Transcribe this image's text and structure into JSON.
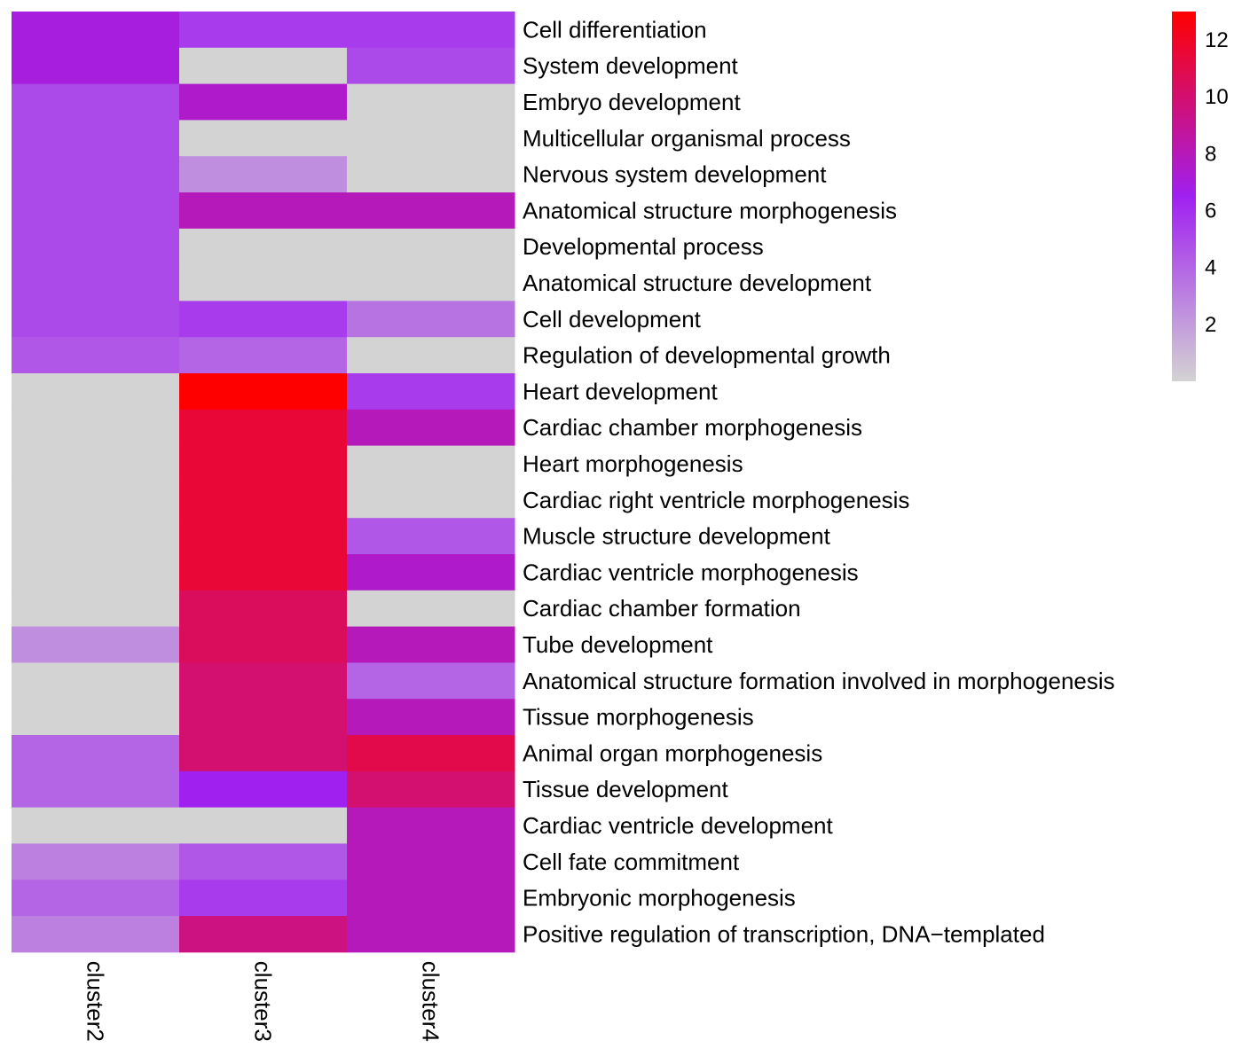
{
  "chart_data": {
    "type": "heatmap",
    "columns": [
      "cluster2",
      "cluster3",
      "cluster4"
    ],
    "rows": [
      "Cell differentiation",
      "System development",
      "Embryo development",
      "Multicellular organismal process",
      "Nervous system development",
      "Anatomical structure morphogenesis",
      "Developmental process",
      "Anatomical structure development",
      "Cell development",
      "Regulation of developmental growth",
      "Heart development",
      "Cardiac chamber morphogenesis",
      "Heart morphogenesis",
      "Cardiac right ventricle morphogenesis",
      "Muscle structure development",
      "Cardiac ventricle morphogenesis",
      "Cardiac chamber formation",
      "Tube development",
      "Anatomical structure formation involved in morphogenesis",
      "Tissue morphogenesis",
      "Animal organ morphogenesis",
      "Tissue development",
      "Cardiac ventricle development",
      "Cell fate commitment",
      "Embryonic morphogenesis",
      "Positive regulation of transcription, DNA−templated"
    ],
    "values": [
      [
        7.0,
        5.5,
        5.5
      ],
      [
        7.0,
        null,
        5.0
      ],
      [
        5.0,
        7.5,
        null
      ],
      [
        5.0,
        null,
        null
      ],
      [
        5.0,
        2.5,
        null
      ],
      [
        5.0,
        8.0,
        8.0
      ],
      [
        5.0,
        null,
        null
      ],
      [
        5.0,
        null,
        null
      ],
      [
        5.0,
        5.5,
        3.5
      ],
      [
        4.5,
        4.0,
        null
      ],
      [
        null,
        13.0,
        5.5
      ],
      [
        null,
        11.5,
        8.0
      ],
      [
        null,
        11.5,
        null
      ],
      [
        null,
        11.5,
        null
      ],
      [
        null,
        11.5,
        4.5
      ],
      [
        null,
        11.5,
        7.5
      ],
      [
        null,
        10.5,
        null
      ],
      [
        2.5,
        10.5,
        8.0
      ],
      [
        null,
        10.0,
        4.0
      ],
      [
        null,
        10.0,
        8.0
      ],
      [
        4.0,
        10.0,
        11.0
      ],
      [
        4.0,
        6.5,
        10.0
      ],
      [
        null,
        null,
        8.0
      ],
      [
        3.0,
        4.5,
        8.0
      ],
      [
        4.0,
        5.5,
        8.0
      ],
      [
        3.0,
        9.5,
        8.0
      ]
    ],
    "colorbar": {
      "ticks": [
        2,
        4,
        6,
        8,
        10,
        12
      ],
      "min": 0,
      "max": 13,
      "na_color": "#d3d3d3",
      "stops": [
        {
          "value": 0,
          "color": "#d3d3d3"
        },
        {
          "value": 6.5,
          "color": "#a020f0"
        },
        {
          "value": 13,
          "color": "#ff0000"
        }
      ]
    }
  }
}
